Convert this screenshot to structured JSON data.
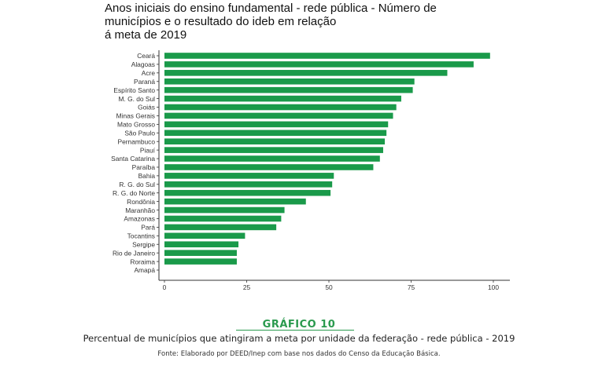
{
  "chart_data": {
    "type": "bar",
    "orientation": "horizontal",
    "title": "Anos iniciais do ensino fundamental - rede pública - Número de\nmunicípios e  o resultado do ideb em relação\ná meta de 2019",
    "categories": [
      "Ceará",
      "Alagoas",
      "Acre",
      "Paraná",
      "Espírito Santo",
      "M. G. do Sul",
      "Goiás",
      "Minas Gerais",
      "Mato Grosso",
      "São Paulo",
      "Pernambuco",
      "Piauí",
      "Santa Catarina",
      "Paraíba",
      "Bahia",
      "R. G. do Sul",
      "R. G. do Norte",
      "Rondônia",
      "Maranhão",
      "Amazonas",
      "Pará",
      "Tocantins",
      "Sergipe",
      "Rio de Janeiro",
      "Roraima",
      "Amapá"
    ],
    "values": [
      99,
      94,
      86,
      76,
      75.5,
      72,
      70.5,
      69.5,
      68,
      67.5,
      67,
      66.5,
      65.5,
      63.5,
      51.5,
      51,
      50.5,
      43,
      36.5,
      35.5,
      34,
      24.5,
      22.5,
      22,
      22,
      0
    ],
    "xlim": [
      0,
      100
    ],
    "xticks": [
      0,
      25,
      50,
      75,
      100
    ],
    "bar_color": "#1a9a4a",
    "grid": false,
    "xlabel": "",
    "ylabel": ""
  },
  "figure_label": "GRÁFICO 10",
  "caption": "Percentual de municípios que atingiram a meta por unidade da federação - rede pública - 2019",
  "source": "Fonte: Elaborado por DEED/Inep com base nos dados do Censo da Educação Básica.",
  "accent_color": "#2a9a4e"
}
